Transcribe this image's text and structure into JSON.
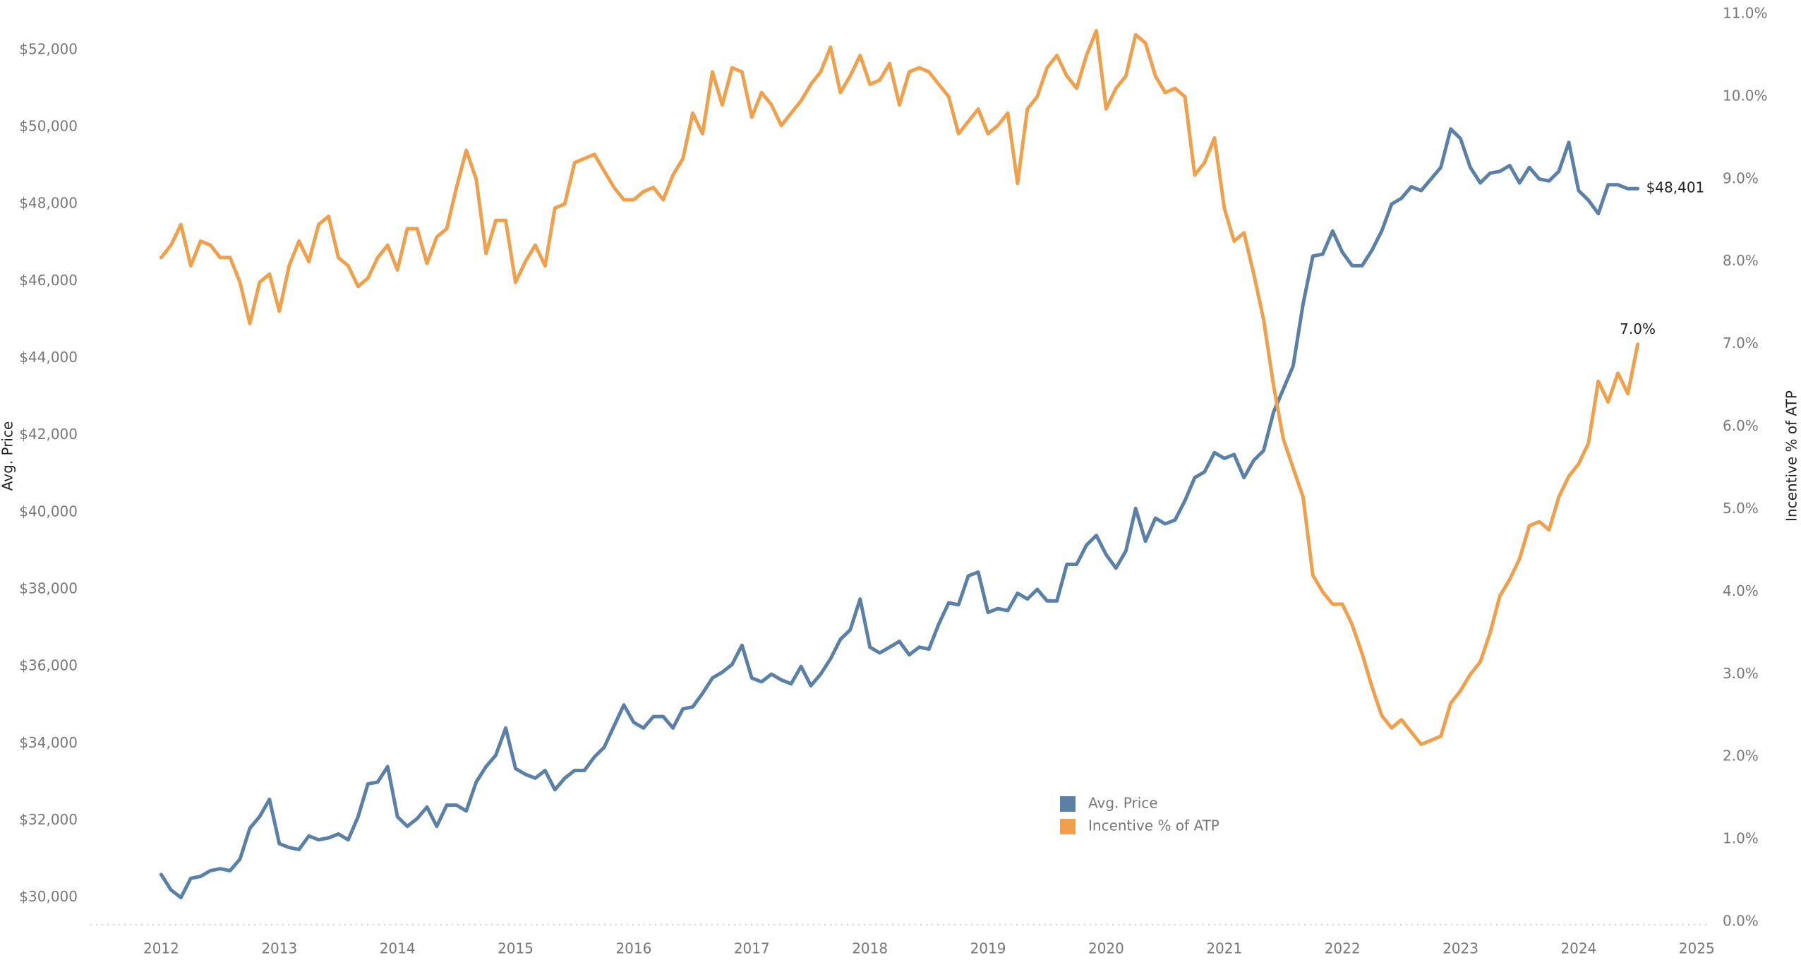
{
  "chart_data": {
    "type": "line",
    "ylabel": "Avg. Price",
    "y2label": "Incentive % of ATP",
    "x": [
      2012,
      2012.083,
      2012.167,
      2012.25,
      2012.333,
      2012.417,
      2012.5,
      2012.583,
      2012.667,
      2012.75,
      2012.833,
      2012.917,
      2013,
      2013.083,
      2013.167,
      2013.25,
      2013.333,
      2013.417,
      2013.5,
      2013.583,
      2013.667,
      2013.75,
      2013.833,
      2013.917,
      2014,
      2014.083,
      2014.167,
      2014.25,
      2014.333,
      2014.417,
      2014.5,
      2014.583,
      2014.667,
      2014.75,
      2014.833,
      2014.917,
      2015,
      2015.083,
      2015.167,
      2015.25,
      2015.333,
      2015.417,
      2015.5,
      2015.583,
      2015.667,
      2015.75,
      2015.833,
      2015.917,
      2016,
      2016.083,
      2016.167,
      2016.25,
      2016.333,
      2016.417,
      2016.5,
      2016.583,
      2016.667,
      2016.75,
      2016.833,
      2016.917,
      2017,
      2017.083,
      2017.167,
      2017.25,
      2017.333,
      2017.417,
      2017.5,
      2017.583,
      2017.667,
      2017.75,
      2017.833,
      2017.917,
      2018,
      2018.083,
      2018.167,
      2018.25,
      2018.333,
      2018.417,
      2018.5,
      2018.583,
      2018.667,
      2018.75,
      2018.833,
      2018.917,
      2019,
      2019.083,
      2019.167,
      2019.25,
      2019.333,
      2019.417,
      2019.5,
      2019.583,
      2019.667,
      2019.75,
      2019.833,
      2019.917,
      2020,
      2020.083,
      2020.167,
      2020.25,
      2020.333,
      2020.417,
      2020.5,
      2020.583,
      2020.667,
      2020.75,
      2020.833,
      2020.917,
      2021,
      2021.083,
      2021.167,
      2021.25,
      2021.333,
      2021.417,
      2021.5,
      2021.583,
      2021.667,
      2021.75,
      2021.833,
      2021.917,
      2022,
      2022.083,
      2022.167,
      2022.25,
      2022.333,
      2022.417,
      2022.5,
      2022.583,
      2022.667,
      2022.75,
      2022.833,
      2022.917,
      2023,
      2023.083,
      2023.167,
      2023.25,
      2023.333,
      2023.417,
      2023.5,
      2023.583,
      2023.667,
      2023.75,
      2023.833,
      2023.917,
      2024,
      2024.083,
      2024.167,
      2024.25,
      2024.333,
      2024.417,
      2024.5
    ],
    "series": [
      {
        "name": "Avg. Price",
        "color": "#5b80a8",
        "values": [
          30600,
          30200,
          30000,
          30500,
          30550,
          30700,
          30750,
          30700,
          31000,
          31800,
          32100,
          32550,
          31400,
          31300,
          31250,
          31600,
          31500,
          31550,
          31650,
          31500,
          32100,
          32950,
          33000,
          33400,
          32100,
          31850,
          32050,
          32350,
          31850,
          32400,
          32400,
          32250,
          33000,
          33400,
          33700,
          34400,
          33350,
          33200,
          33100,
          33300,
          32800,
          33100,
          33300,
          33300,
          33650,
          33900,
          34450,
          35000,
          34550,
          34400,
          34700,
          34700,
          34400,
          34900,
          34950,
          35300,
          35700,
          35850,
          36050,
          36550,
          35700,
          35600,
          35800,
          35650,
          35550,
          36000,
          35500,
          35800,
          36200,
          36700,
          36950,
          37750,
          36500,
          36350,
          36500,
          36650,
          36300,
          36500,
          36450,
          37100,
          37650,
          37600,
          38350,
          38450,
          37400,
          37500,
          37450,
          37900,
          37750,
          38000,
          37700,
          37700,
          38650,
          38650,
          39150,
          39400,
          38900,
          38550,
          39000,
          40100,
          39250,
          39850,
          39700,
          39800,
          40300,
          40900,
          41050,
          41550,
          41400,
          41500,
          40900,
          41350,
          41600,
          42600,
          43200,
          43800,
          45400,
          46650,
          46700,
          47300,
          46750,
          46400,
          46400,
          46800,
          47300,
          48000,
          48150,
          48450,
          48350,
          48650,
          48950,
          49950,
          49700,
          48950,
          48550,
          48800,
          48850,
          49000,
          48550,
          48950,
          48650,
          48600,
          48850,
          49600,
          48350,
          48100,
          47750,
          48500,
          48500,
          48400,
          48401
        ],
        "value_labels": [
          null,
          null,
          null,
          null,
          null,
          null,
          null,
          null,
          null,
          null,
          null,
          null,
          null,
          null,
          null,
          null,
          null,
          null,
          null,
          null,
          null,
          null,
          null,
          null,
          null,
          null,
          null,
          null,
          null,
          null,
          null,
          null,
          null,
          null,
          null,
          null,
          null,
          null,
          null,
          null,
          null,
          null,
          null,
          null,
          null,
          null,
          null,
          null,
          null,
          null,
          null,
          null,
          null,
          null,
          null,
          null,
          null,
          null,
          null,
          null,
          null,
          null,
          null,
          null,
          null,
          null,
          null,
          null,
          null,
          null,
          null,
          null,
          null,
          null,
          null,
          null,
          null,
          null,
          null,
          null,
          null,
          null,
          null,
          null,
          null,
          null,
          null,
          null,
          null,
          null,
          null,
          null,
          null,
          null,
          null,
          null,
          null,
          null,
          null,
          null,
          null,
          null,
          null,
          null,
          null,
          null,
          null,
          null,
          null,
          null,
          null,
          null,
          null,
          null,
          null,
          null,
          null,
          null,
          null,
          null,
          null,
          null,
          null,
          null,
          null,
          null,
          null,
          null,
          null,
          null,
          null,
          null,
          null,
          null,
          null,
          null,
          null,
          null,
          null,
          null,
          null,
          null,
          null,
          null,
          null,
          null,
          null,
          null,
          null,
          null,
          "$48,401"
        ]
      },
      {
        "name": "Incentive % of ATP",
        "color": "#f0a04b",
        "axis": "y2",
        "values": [
          8.05,
          8.2,
          8.45,
          7.95,
          8.25,
          8.2,
          8.05,
          8.05,
          7.75,
          7.25,
          7.75,
          7.85,
          7.4,
          7.95,
          8.25,
          8.0,
          8.45,
          8.55,
          8.05,
          7.95,
          7.7,
          7.8,
          8.05,
          8.2,
          7.9,
          8.4,
          8.4,
          7.98,
          8.3,
          8.4,
          8.9,
          9.35,
          9.0,
          8.1,
          8.5,
          8.5,
          7.75,
          8.0,
          8.2,
          7.95,
          8.65,
          8.7,
          9.2,
          9.25,
          9.3,
          9.1,
          8.9,
          8.75,
          8.75,
          8.85,
          8.9,
          8.75,
          9.05,
          9.25,
          9.8,
          9.55,
          10.3,
          9.9,
          10.35,
          10.3,
          9.75,
          10.05,
          9.9,
          9.65,
          9.8,
          9.95,
          10.15,
          10.3,
          10.6,
          10.05,
          10.25,
          10.5,
          10.15,
          10.2,
          10.4,
          9.9,
          10.3,
          10.35,
          10.3,
          10.15,
          10.0,
          9.55,
          9.7,
          9.85,
          9.55,
          9.65,
          9.8,
          8.95,
          9.85,
          10.0,
          10.35,
          10.5,
          10.25,
          10.1,
          10.5,
          10.8,
          9.85,
          10.1,
          10.25,
          10.75,
          10.65,
          10.25,
          10.05,
          10.1,
          10.0,
          9.05,
          9.2,
          9.5,
          8.65,
          8.25,
          8.35,
          7.85,
          7.3,
          6.5,
          5.85,
          5.5,
          5.15,
          4.2,
          4.0,
          3.85,
          3.85,
          3.6,
          3.25,
          2.85,
          2.5,
          2.35,
          2.45,
          2.3,
          2.15,
          2.2,
          2.25,
          2.65,
          2.8,
          3.0,
          3.15,
          3.5,
          3.95,
          4.15,
          4.4,
          4.8,
          4.85,
          4.75,
          5.15,
          5.4,
          5.55,
          5.8,
          6.55,
          6.3,
          6.65,
          6.4,
          7.0
        ],
        "value_labels": [
          null,
          null,
          null,
          null,
          null,
          null,
          null,
          null,
          null,
          null,
          null,
          null,
          null,
          null,
          null,
          null,
          null,
          null,
          null,
          null,
          null,
          null,
          null,
          null,
          null,
          null,
          null,
          null,
          null,
          null,
          null,
          null,
          null,
          null,
          null,
          null,
          null,
          null,
          null,
          null,
          null,
          null,
          null,
          null,
          null,
          null,
          null,
          null,
          null,
          null,
          null,
          null,
          null,
          null,
          null,
          null,
          null,
          null,
          null,
          null,
          null,
          null,
          null,
          null,
          null,
          null,
          null,
          null,
          null,
          null,
          null,
          null,
          null,
          null,
          null,
          null,
          null,
          null,
          null,
          null,
          null,
          null,
          null,
          null,
          null,
          null,
          null,
          null,
          null,
          null,
          null,
          null,
          null,
          null,
          null,
          null,
          null,
          null,
          null,
          null,
          null,
          null,
          null,
          null,
          null,
          null,
          null,
          null,
          null,
          null,
          null,
          null,
          null,
          null,
          null,
          null,
          null,
          null,
          null,
          null,
          null,
          null,
          null,
          null,
          null,
          null,
          null,
          null,
          null,
          null,
          null,
          null,
          null,
          null,
          null,
          null,
          null,
          null,
          null,
          null,
          null,
          null,
          null,
          null,
          null,
          null,
          null,
          null,
          null,
          null,
          "7.0%"
        ]
      }
    ],
    "xlim": [
      2011.4,
      2025.1
    ],
    "xticks": [
      2012,
      2013,
      2014,
      2015,
      2016,
      2017,
      2018,
      2019,
      2020,
      2021,
      2022,
      2023,
      2024,
      2025
    ],
    "ylim": [
      29370,
      52930
    ],
    "yticks": [
      {
        "value": 30000,
        "label": "$30,000"
      },
      {
        "value": 32000,
        "label": "$32,000"
      },
      {
        "value": 34000,
        "label": "$34,000"
      },
      {
        "value": 36000,
        "label": "$36,000"
      },
      {
        "value": 38000,
        "label": "$38,000"
      },
      {
        "value": 40000,
        "label": "$40,000"
      },
      {
        "value": 42000,
        "label": "$42,000"
      },
      {
        "value": 44000,
        "label": "$44,000"
      },
      {
        "value": 46000,
        "label": "$46,000"
      },
      {
        "value": 48000,
        "label": "$48,000"
      },
      {
        "value": 50000,
        "label": "$50,000"
      },
      {
        "value": 52000,
        "label": "$52,000"
      }
    ],
    "y2lim": [
      0,
      11
    ],
    "y2ticks": [
      {
        "value": 0,
        "label": "0.0%"
      },
      {
        "value": 1,
        "label": "1.0%"
      },
      {
        "value": 2,
        "label": "2.0%"
      },
      {
        "value": 3,
        "label": "3.0%"
      },
      {
        "value": 4,
        "label": "4.0%"
      },
      {
        "value": 5,
        "label": "5.0%"
      },
      {
        "value": 6,
        "label": "6.0%"
      },
      {
        "value": 7,
        "label": "7.0%"
      },
      {
        "value": 8,
        "label": "8.0%"
      },
      {
        "value": 9,
        "label": "9.0%"
      },
      {
        "value": 10,
        "label": "10.0%"
      },
      {
        "value": 11,
        "label": "11.0%"
      }
    ],
    "grid": false
  }
}
